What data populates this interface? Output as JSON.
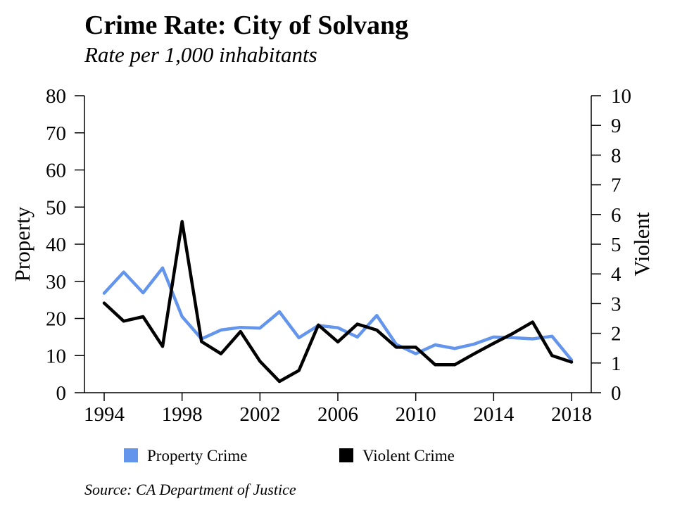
{
  "chart_data": {
    "type": "line",
    "title": "Crime Rate: City of Solvang",
    "subtitle": "Rate per 1,000 inhabitants",
    "source": "Source: CA Department of Justice",
    "x": [
      1994,
      1995,
      1996,
      1997,
      1998,
      1999,
      2000,
      2001,
      2002,
      2003,
      2004,
      2005,
      2006,
      2007,
      2008,
      2009,
      2010,
      2011,
      2012,
      2013,
      2014,
      2015,
      2016,
      2017,
      2018
    ],
    "x_ticks": [
      "1994",
      "1998",
      "2002",
      "2006",
      "2010",
      "2014",
      "2018"
    ],
    "ylabel_left": "Property",
    "ylabel_right": "Violent",
    "ylim_left": [
      0,
      80
    ],
    "ylim_right": [
      0,
      10
    ],
    "yticks_left": [
      "0",
      "10",
      "20",
      "30",
      "40",
      "50",
      "60",
      "70",
      "80"
    ],
    "yticks_right": [
      "0",
      "1",
      "2",
      "3",
      "4",
      "5",
      "6",
      "7",
      "8",
      "9",
      "10"
    ],
    "grid": false,
    "legend_position": "bottom",
    "series": [
      {
        "name": "Property Crime",
        "axis": "left",
        "color": "#6495ED",
        "values": [
          26.8,
          32.5,
          26.9,
          33.6,
          20.5,
          14.5,
          16.9,
          17.6,
          17.4,
          21.8,
          14.8,
          18.1,
          17.5,
          15.0,
          20.8,
          13.0,
          10.5,
          12.9,
          11.9,
          13.1,
          15.0,
          14.8,
          14.5,
          15.2,
          8.8
        ]
      },
      {
        "name": "Violent Crime",
        "axis": "right",
        "color": "#000000",
        "values": [
          3.02,
          2.41,
          2.56,
          1.56,
          5.76,
          1.72,
          1.31,
          2.06,
          1.06,
          0.38,
          0.75,
          2.28,
          1.71,
          2.31,
          2.11,
          1.53,
          1.53,
          0.94,
          0.94,
          1.31,
          1.66,
          2.0,
          2.38,
          1.25,
          1.03
        ]
      }
    ]
  }
}
